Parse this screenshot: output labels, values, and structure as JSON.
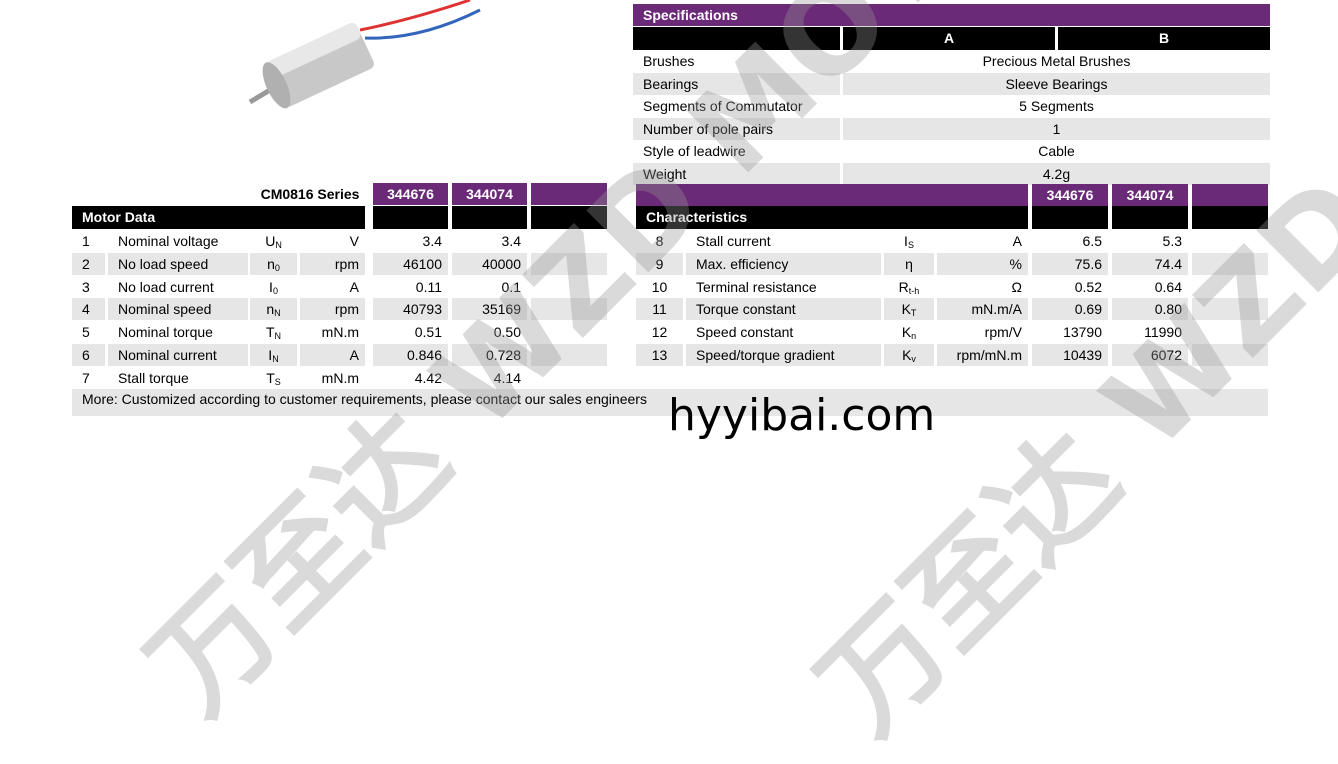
{
  "watermark": "万至达 WZD MOTOR",
  "site": "hyyibai.com",
  "colors": {
    "purple": "#6b2a78",
    "black": "#000000",
    "stripe": "#e6e6e6"
  },
  "motor_data": {
    "series": "CM0816 Series",
    "title": "Motor Data",
    "models": [
      "344676",
      "344074"
    ],
    "rows": [
      {
        "n": "1",
        "name": "Nominal voltage",
        "sym": "U",
        "sub": "N",
        "unit": "V",
        "v1": "3.4",
        "v2": "3.4"
      },
      {
        "n": "2",
        "name": "No load speed",
        "sym": "n",
        "sub": "0",
        "unit": "rpm",
        "v1": "46100",
        "v2": "40000"
      },
      {
        "n": "3",
        "name": "No load current",
        "sym": "I",
        "sub": "0",
        "unit": "A",
        "v1": "0.11",
        "v2": "0.1"
      },
      {
        "n": "4",
        "name": "Nominal speed",
        "sym": "n",
        "sub": "N",
        "unit": "rpm",
        "v1": "40793",
        "v2": "35169"
      },
      {
        "n": "5",
        "name": "Nominal torque",
        "sym": "T",
        "sub": "N",
        "unit": "mN.m",
        "v1": "0.51",
        "v2": "0.50"
      },
      {
        "n": "6",
        "name": "Nominal current",
        "sym": "I",
        "sub": "N",
        "unit": "A",
        "v1": "0.846",
        "v2": "0.728"
      },
      {
        "n": "7",
        "name": "Stall torque",
        "sym": "T",
        "sub": "S",
        "unit": "mN.m",
        "v1": "4.42",
        "v2": "4.14"
      }
    ],
    "footer": "More: Customized according to customer requirements, please contact our sales engineers"
  },
  "specs": {
    "title": "Specifications",
    "col_a": "A",
    "col_b": "B",
    "rows": [
      {
        "label": "Brushes",
        "value": "Precious Metal Brushes"
      },
      {
        "label": "Bearings",
        "value": "Sleeve  Bearings"
      },
      {
        "label": "Segments of Commutator",
        "value": "5 Segments"
      },
      {
        "label": "Number of pole pairs",
        "value": "1"
      },
      {
        "label": "Style of leadwire",
        "value": "Cable"
      },
      {
        "label": "Weight",
        "value": "4.2g"
      }
    ]
  },
  "characteristics": {
    "title": "Characteristics",
    "models": [
      "344676",
      "344074"
    ],
    "rows": [
      {
        "n": "8",
        "name": "Stall current",
        "sym": "I",
        "sub": "S",
        "unit": "A",
        "v1": "6.5",
        "v2": "5.3"
      },
      {
        "n": "9",
        "name": "Max. efficiency",
        "sym": "η",
        "sub": "",
        "unit": "%",
        "v1": "75.6",
        "v2": "74.4"
      },
      {
        "n": "10",
        "name": "Terminal resistance",
        "sym": "R",
        "sub": "t-h",
        "unit": "Ω",
        "v1": "0.52",
        "v2": "0.64"
      },
      {
        "n": "11",
        "name": "Torque constant",
        "sym": "K",
        "sub": "T",
        "unit": "mN.m/A",
        "v1": "0.69",
        "v2": "0.80"
      },
      {
        "n": "12",
        "name": "Speed constant",
        "sym": "K",
        "sub": "n",
        "unit": "rpm/V",
        "v1": "13790",
        "v2": "11990"
      },
      {
        "n": "13",
        "name": "Speed/torque gradient",
        "sym": "K",
        "sub": "v",
        "unit": "rpm/mN.m",
        "v1": "10439",
        "v2": "6072"
      }
    ]
  }
}
